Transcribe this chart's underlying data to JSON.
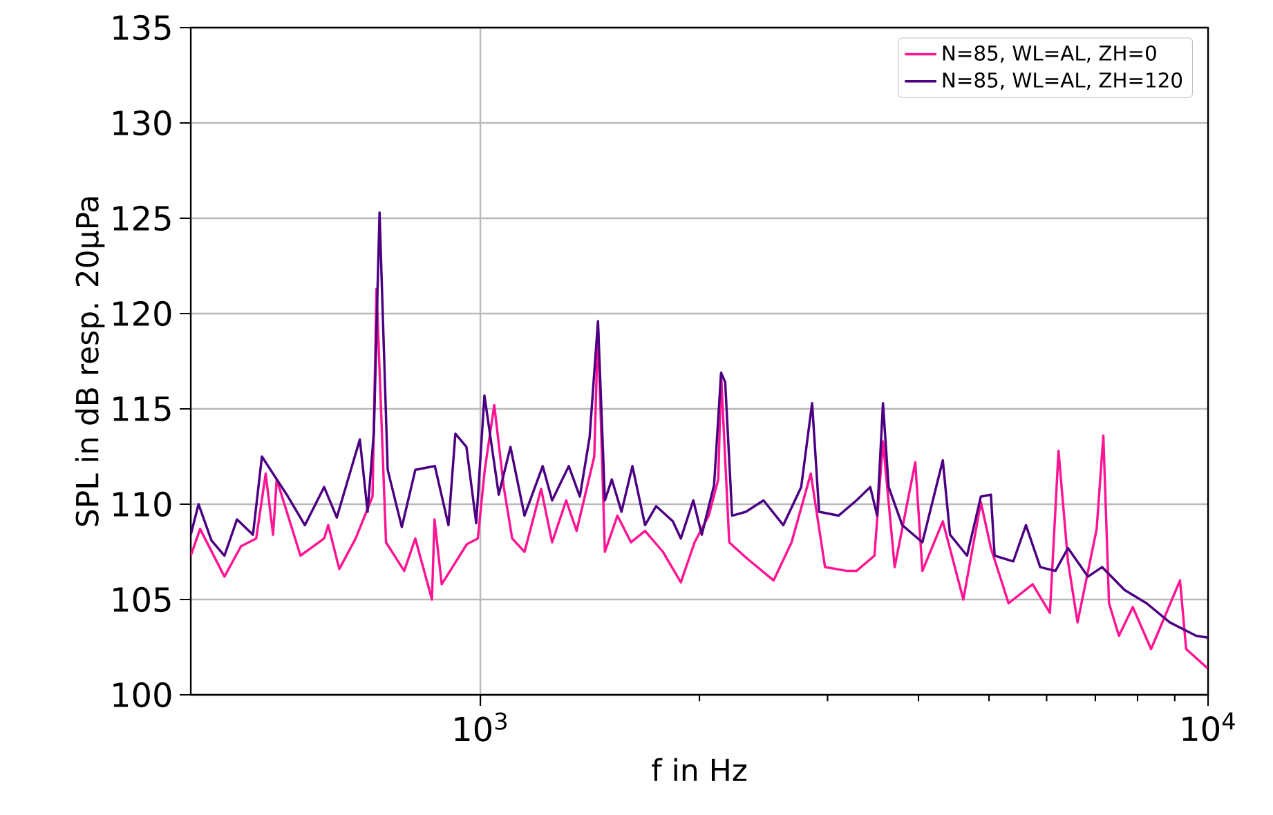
{
  "chart_data": {
    "type": "line",
    "xlabel": "f in Hz",
    "ylabel": "SPL in dB resp. 20μPa",
    "log": "x",
    "grid": true,
    "legend": "top right",
    "line_style": "solid",
    "marker": "none",
    "xlim": [
      400,
      10000
    ],
    "ylim": [
      100,
      135
    ],
    "xticks": [
      {
        "value": 1000,
        "label": "10$^{3}$"
      },
      {
        "value": 10000,
        "label": "10$^{4}$"
      }
    ],
    "yticks": [
      100,
      105,
      110,
      115,
      120,
      125,
      130,
      135
    ],
    "series": [
      {
        "name": "N=85, WL=AL, ZH=0",
        "color": "#ff1493",
        "x": [
          400,
          412,
          445,
          469,
          492,
          507,
          519,
          525,
          566,
          610,
          618,
          640,
          674,
          711,
          720,
          742,
          786,
          814,
          858,
          865,
          885,
          958,
          992,
          1014,
          1045,
          1077,
          1106,
          1150,
          1212,
          1255,
          1312,
          1356,
          1434,
          1451,
          1483,
          1543,
          1611,
          1684,
          1782,
          1886,
          1970,
          2060,
          2123,
          2142,
          2198,
          2317,
          2529,
          2677,
          2845,
          2976,
          3192,
          3288,
          3480,
          3575,
          3710,
          3960,
          4050,
          4320,
          4610,
          4873,
          5030,
          5320,
          5740,
          6063,
          6230,
          6420,
          6617,
          7030,
          7180,
          7310,
          7544,
          7882,
          8350,
          9150,
          9330,
          9980
        ],
        "values": [
          107.3,
          108.7,
          106.2,
          107.8,
          108.2,
          111.6,
          108.4,
          111.3,
          107.3,
          108.2,
          108.9,
          106.6,
          108.2,
          110.4,
          121.3,
          108,
          106.5,
          108.2,
          105,
          109.2,
          105.8,
          107.9,
          108.2,
          111.8,
          115.2,
          110.9,
          108.2,
          107.5,
          110.8,
          108,
          110.2,
          108.6,
          112.5,
          119.3,
          107.5,
          109.4,
          108,
          108.6,
          107.5,
          105.9,
          108,
          109.4,
          111.3,
          116.8,
          108,
          107.2,
          106,
          108,
          111.6,
          106.7,
          106.5,
          106.5,
          107.3,
          113.3,
          106.7,
          112.2,
          106.5,
          109.1,
          105,
          110.1,
          107.7,
          104.8,
          105.8,
          104.3,
          112.8,
          107,
          103.8,
          108.7,
          113.6,
          104.8,
          103.1,
          104.6,
          102.4,
          106,
          102.4,
          101.4
        ]
      },
      {
        "name": "N=85, WL=AL, ZH=120",
        "color": "#4b0082",
        "x": [
          400,
          410,
          427,
          445,
          463,
          487,
          501,
          519,
          542,
          574,
          610,
          635,
          683,
          700,
          714,
          727,
          746,
          780,
          814,
          866,
          904,
          924,
          957,
          987,
          1013,
          1060,
          1100,
          1150,
          1218,
          1255,
          1323,
          1370,
          1413,
          1451,
          1483,
          1516,
          1563,
          1618,
          1684,
          1744,
          1839,
          1886,
          1962,
          2015,
          2095,
          2142,
          2170,
          2218,
          2317,
          2450,
          2608,
          2760,
          2857,
          2921,
          3106,
          3288,
          3434,
          3510,
          3575,
          3640,
          3800,
          4050,
          4320,
          4420,
          4664,
          4873,
          5030,
          5090,
          5400,
          5620,
          5880,
          6170,
          6420,
          6840,
          7150,
          7680,
          8233,
          8860,
          9630,
          10000
        ],
        "values": [
          108.4,
          110,
          108.1,
          107.3,
          109.2,
          108.4,
          112.5,
          111.6,
          110.5,
          108.9,
          110.9,
          109.3,
          113.4,
          109.6,
          113.8,
          125.3,
          111.8,
          108.8,
          111.8,
          112,
          108.9,
          113.7,
          113,
          109,
          115.7,
          110.5,
          113,
          109.4,
          112,
          110.2,
          112,
          110.4,
          113.5,
          119.6,
          110.2,
          111.3,
          109.6,
          112,
          108.9,
          109.9,
          109.1,
          108.2,
          110.2,
          108.4,
          111,
          116.9,
          116.4,
          109.4,
          109.6,
          110.2,
          108.9,
          110.9,
          115.3,
          109.6,
          109.4,
          110.2,
          110.9,
          109.4,
          115.3,
          110.9,
          108.9,
          108,
          112.3,
          108.4,
          107.3,
          110.4,
          110.5,
          107.3,
          107,
          108.9,
          106.7,
          106.5,
          107.7,
          106.2,
          106.7,
          105.5,
          104.8,
          103.8,
          103.1,
          103
        ]
      }
    ]
  }
}
